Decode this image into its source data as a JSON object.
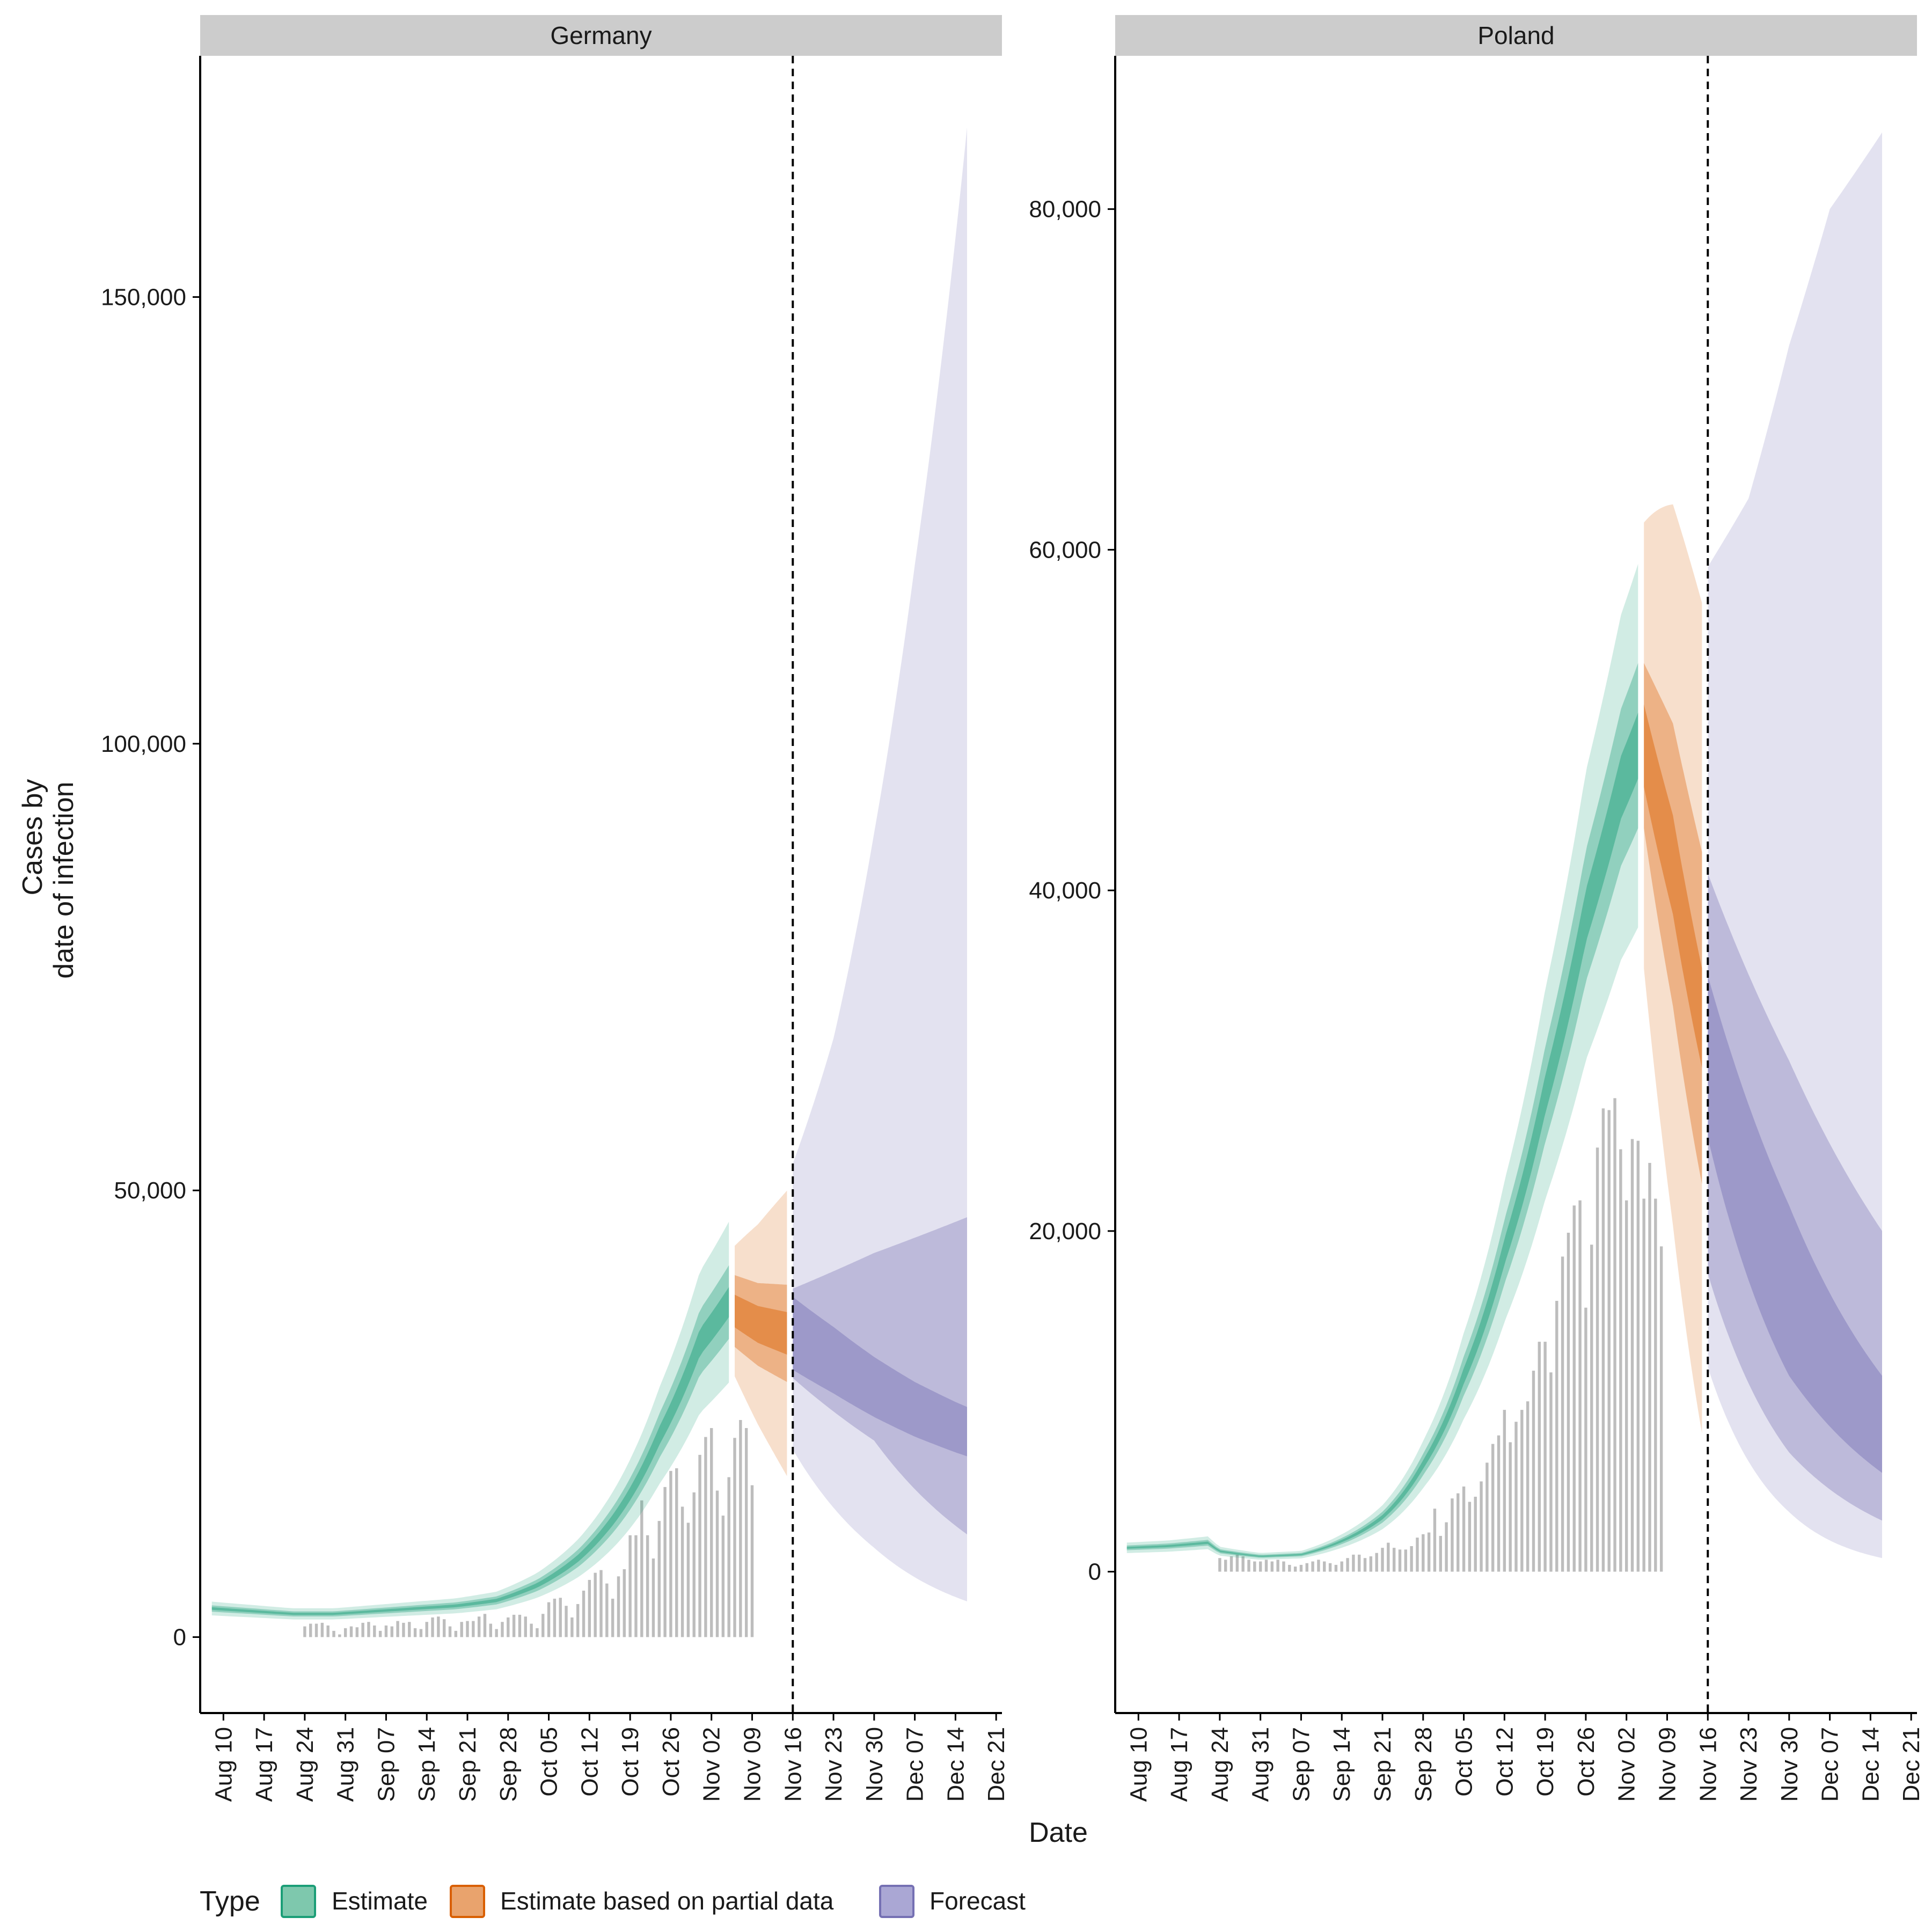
{
  "chart_data": [
    {
      "type": "area",
      "panel": "Germany",
      "xlabel": "Date",
      "ylabel_lines": [
        "Cases by",
        "date of infection"
      ],
      "x_range": [
        "2020-08-06",
        "2020-12-22"
      ],
      "ylim": [
        -8500,
        177000
      ],
      "y_ticks": [
        0,
        50000,
        100000,
        150000
      ],
      "y_tick_labels": [
        "0",
        "50,000",
        "100,000",
        "150,000"
      ],
      "x_ticks": [
        "2020-08-10",
        "2020-08-17",
        "2020-08-24",
        "2020-08-31",
        "2020-09-07",
        "2020-09-14",
        "2020-09-21",
        "2020-09-28",
        "2020-10-05",
        "2020-10-12",
        "2020-10-19",
        "2020-10-26",
        "2020-11-02",
        "2020-11-09",
        "2020-11-16",
        "2020-11-23",
        "2020-11-30",
        "2020-12-07",
        "2020-12-14",
        "2020-12-21"
      ],
      "x_tick_labels": [
        "Aug 10",
        "Aug 17",
        "Aug 24",
        "Aug 31",
        "Sep 07",
        "Sep 14",
        "Sep 21",
        "Sep 28",
        "Oct 05",
        "Oct 12",
        "Oct 19",
        "Oct 26",
        "Nov 02",
        "Nov 09",
        "Nov 16",
        "Nov 23",
        "Nov 30",
        "Dec 07",
        "Dec 14",
        "Dec 21"
      ],
      "vline_date": "2020-11-16",
      "bars_start": "2020-08-24",
      "bars": [
        1200,
        1500,
        1500,
        1600,
        1300,
        700,
        300,
        1000,
        1200,
        1100,
        1600,
        1700,
        1300,
        700,
        1300,
        1200,
        1800,
        1600,
        1700,
        1000,
        900,
        1700,
        2200,
        2300,
        2000,
        1200,
        700,
        1700,
        1800,
        1800,
        2300,
        2600,
        1500,
        900,
        1700,
        2200,
        2500,
        2500,
        2300,
        1500,
        1000,
        2600,
        3900,
        4300,
        4400,
        3500,
        2200,
        3700,
        5200,
        6400,
        7200,
        7500,
        6000,
        4300,
        6800,
        7600,
        11400,
        11400,
        15300,
        11400,
        8800,
        13000,
        16800,
        18600,
        18900,
        14600,
        12800,
        16200,
        20400,
        22400,
        23400,
        16400,
        13600,
        17900,
        22300,
        24300,
        23400,
        17000
      ],
      "series": [
        {
          "name": "Estimate",
          "start": "2020-08-08",
          "end": "2020-11-05",
          "anchors": [
            [
              "2020-08-08",
              3200
            ],
            [
              "2020-08-15",
              2900
            ],
            [
              "2020-08-22",
              2600
            ],
            [
              "2020-08-29",
              2600
            ],
            [
              "2020-09-05",
              2900
            ],
            [
              "2020-09-12",
              3200
            ],
            [
              "2020-09-19",
              3500
            ],
            [
              "2020-09-26",
              4100
            ],
            [
              "2020-10-03",
              5800
            ],
            [
              "2020-10-10",
              8800
            ],
            [
              "2020-10-17",
              14000
            ],
            [
              "2020-10-24",
              22500
            ],
            [
              "2020-10-31",
              33000
            ],
            [
              "2020-11-05",
              37500
            ]
          ],
          "rel_50": 0.045,
          "rel_90": 0.11,
          "rel_95": 0.24
        },
        {
          "name": "Estimate based on partial data",
          "start": "2020-11-06",
          "end": "2020-11-15",
          "anchors": [
            [
              "2020-11-06",
              36500
            ],
            [
              "2020-11-10",
              35000
            ],
            [
              "2020-11-15",
              34000
            ]
          ],
          "rel_50_start": 0.05,
          "rel_50_end": 0.07,
          "rel_90_start": 0.11,
          "rel_90_end": 0.16,
          "rel_95_start": 0.2,
          "rel_95_end": 0.47
        },
        {
          "name": "Forecast",
          "start": "2020-11-16",
          "end": "2020-12-16",
          "anchors": [
            [
              "2020-11-16",
              34000
            ],
            [
              "2020-11-23",
              31000
            ],
            [
              "2020-11-30",
              28000
            ],
            [
              "2020-12-07",
              25500
            ],
            [
              "2020-12-14",
              23500
            ],
            [
              "2020-12-16",
              23000
            ]
          ],
          "upper_90": [
            [
              "2020-11-16",
              39000
            ],
            [
              "2020-11-30",
              43000
            ],
            [
              "2020-12-16",
              47000
            ]
          ],
          "lower_90": [
            [
              "2020-11-16",
              29000
            ],
            [
              "2020-11-30",
              22000
            ],
            [
              "2020-12-16",
              11500
            ]
          ],
          "upper_95": [
            [
              "2020-11-16",
              53000
            ],
            [
              "2020-11-23",
              67000
            ],
            [
              "2020-11-30",
              90000
            ],
            [
              "2020-12-07",
              120000
            ],
            [
              "2020-12-16",
              169000
            ]
          ],
          "lower_95": [
            [
              "2020-11-16",
              21000
            ],
            [
              "2020-11-30",
              10000
            ],
            [
              "2020-12-16",
              4000
            ]
          ]
        }
      ]
    },
    {
      "type": "area",
      "panel": "Poland",
      "xlabel": "Date",
      "x_range": [
        "2020-08-06",
        "2020-12-22"
      ],
      "ylim": [
        -8300,
        89000
      ],
      "y_ticks": [
        0,
        20000,
        40000,
        60000,
        80000
      ],
      "y_tick_labels": [
        "0",
        "20,000",
        "40,000",
        "60,000",
        "80,000"
      ],
      "x_ticks": [
        "2020-08-10",
        "2020-08-17",
        "2020-08-24",
        "2020-08-31",
        "2020-09-07",
        "2020-09-14",
        "2020-09-21",
        "2020-09-28",
        "2020-10-05",
        "2020-10-12",
        "2020-10-19",
        "2020-10-26",
        "2020-11-02",
        "2020-11-09",
        "2020-11-16",
        "2020-11-23",
        "2020-11-30",
        "2020-12-07",
        "2020-12-14",
        "2020-12-21"
      ],
      "x_tick_labels": [
        "Aug 10",
        "Aug 17",
        "Aug 24",
        "Aug 31",
        "Sep 07",
        "Sep 14",
        "Sep 21",
        "Sep 28",
        "Oct 05",
        "Oct 12",
        "Oct 19",
        "Oct 26",
        "Nov 02",
        "Nov 09",
        "Nov 16",
        "Nov 23",
        "Nov 30",
        "Dec 07",
        "Dec 14",
        "Dec 21"
      ],
      "vline_date": "2020-11-16",
      "bars_start": "2020-08-24",
      "bars": [
        800,
        700,
        900,
        1000,
        900,
        700,
        600,
        600,
        700,
        600,
        700,
        600,
        400,
        300,
        400,
        500,
        600,
        700,
        600,
        500,
        400,
        600,
        800,
        1000,
        1000,
        800,
        900,
        1100,
        1400,
        1700,
        1400,
        1300,
        1300,
        1500,
        2000,
        2200,
        2300,
        3700,
        2100,
        2900,
        4300,
        4600,
        5000,
        4100,
        4400,
        5300,
        6400,
        7500,
        8000,
        9500,
        7600,
        8800,
        9500,
        10000,
        11800,
        13500,
        13500,
        11700,
        15900,
        18500,
        19900,
        21500,
        21800,
        15500,
        19200,
        24900,
        27200,
        27100,
        27800,
        24800,
        21800,
        25400,
        25300,
        21900,
        24000,
        21900,
        19100
      ],
      "series": [
        {
          "name": "Estimate",
          "start": "2020-08-08",
          "end": "2020-11-04",
          "anchors": [
            [
              "2020-08-08",
              1400
            ],
            [
              "2020-08-15",
              1500
            ],
            [
              "2020-08-22",
              1700
            ],
            [
              "2020-08-24",
              1200
            ],
            [
              "2020-08-31",
              900
            ],
            [
              "2020-09-07",
              1000
            ],
            [
              "2020-09-14",
              1800
            ],
            [
              "2020-09-21",
              3200
            ],
            [
              "2020-09-28",
              6300
            ],
            [
              "2020-10-05",
              11500
            ],
            [
              "2020-10-12",
              18800
            ],
            [
              "2020-10-19",
              28000
            ],
            [
              "2020-10-26",
              38500
            ],
            [
              "2020-11-01",
              46000
            ],
            [
              "2020-11-04",
              48500
            ]
          ],
          "rel_50": 0.04,
          "rel_90": 0.1,
          "rel_95": 0.22
        },
        {
          "name": "Estimate based on partial data",
          "start": "2020-11-05",
          "end": "2020-11-15",
          "anchors": [
            [
              "2020-11-05",
              48500
            ],
            [
              "2020-11-10",
              41500
            ],
            [
              "2020-11-15",
              32500
            ]
          ],
          "rel_50_start": 0.05,
          "rel_50_end": 0.09,
          "rel_90_start": 0.1,
          "rel_90_end": 0.3,
          "rel_95_start": 0.27,
          "rel_95_end": 0.75
        },
        {
          "name": "Forecast",
          "start": "2020-11-16",
          "end": "2020-12-16",
          "anchors": [
            [
              "2020-11-16",
              30000
            ],
            [
              "2020-11-23",
              21500
            ],
            [
              "2020-11-30",
              15500
            ],
            [
              "2020-12-07",
              11500
            ],
            [
              "2020-12-14",
              8500
            ],
            [
              "2020-12-16",
              8000
            ]
          ],
          "upper_50": [
            [
              "2020-11-16",
              35000
            ],
            [
              "2020-11-30",
              21500
            ],
            [
              "2020-12-16",
              11500
            ]
          ],
          "lower_50": [
            [
              "2020-11-16",
              25500
            ],
            [
              "2020-11-30",
              11500
            ],
            [
              "2020-12-16",
              5800
            ]
          ],
          "upper_90": [
            [
              "2020-11-16",
              41000
            ],
            [
              "2020-11-30",
              30000
            ],
            [
              "2020-12-16",
              20000
            ]
          ],
          "lower_90": [
            [
              "2020-11-16",
              17500
            ],
            [
              "2020-11-30",
              7000
            ],
            [
              "2020-12-16",
              3000
            ]
          ],
          "upper_95": [
            [
              "2020-11-16",
              59000
            ],
            [
              "2020-11-23",
              63000
            ],
            [
              "2020-11-30",
              72000
            ],
            [
              "2020-12-07",
              80000
            ],
            [
              "2020-12-16",
              84500
            ]
          ],
          "lower_95": [
            [
              "2020-11-16",
              12000
            ],
            [
              "2020-11-30",
              3500
            ],
            [
              "2020-12-16",
              800
            ]
          ]
        }
      ]
    }
  ],
  "legend": {
    "title": "Type",
    "position": "bottom",
    "items": [
      {
        "label": "Estimate",
        "fill": "#7ec8ad",
        "stroke": "#1b9e77"
      },
      {
        "label": "Estimate based on partial data",
        "fill": "#e9a36d",
        "stroke": "#d95f02"
      },
      {
        "label": "Forecast",
        "fill": "#aaa7d4",
        "stroke": "#7570b3"
      }
    ]
  },
  "colors": {
    "estimate": "#1b9e77",
    "partial": "#d95f02",
    "forecast": "#7570b3",
    "bars": "#bdbdbd",
    "strip": "#cccccc"
  }
}
